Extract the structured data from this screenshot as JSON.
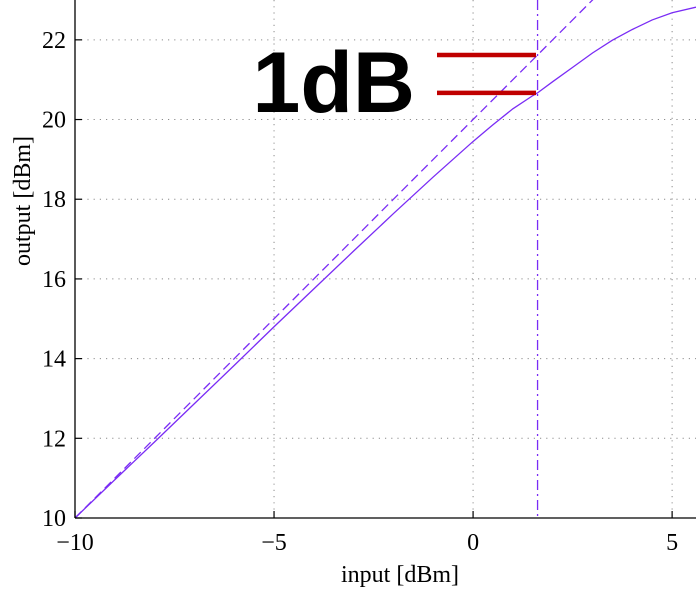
{
  "chart_data": {
    "type": "line",
    "title": "",
    "xlabel": "input [dBm]",
    "ylabel": "output [dBm]",
    "xlim": [
      -10,
      5.6
    ],
    "ylim": [
      10,
      23
    ],
    "x_ticks": [
      -10,
      -5,
      0,
      5
    ],
    "x_tick_labels": [
      "−10",
      "−5",
      "0",
      "5"
    ],
    "y_ticks": [
      10,
      12,
      14,
      16,
      18,
      20,
      22
    ],
    "y_tick_labels": [
      "10",
      "12",
      "14",
      "16",
      "18",
      "20",
      "22"
    ],
    "grid": true,
    "legend": "none",
    "series": [
      {
        "style": "solid",
        "color": "#7a2cf5",
        "x": [
          -10,
          -9,
          -8,
          -7,
          -6,
          -5,
          -4,
          -3,
          -2,
          -1,
          0,
          0.5,
          1,
          1.5,
          1.62,
          2,
          2.5,
          3,
          3.5,
          4,
          4.5,
          5,
          5.6
        ],
        "y": [
          10,
          10.96,
          11.91,
          12.87,
          13.83,
          14.8,
          15.75,
          16.7,
          17.64,
          18.56,
          19.45,
          19.87,
          20.27,
          20.6,
          20.67,
          20.95,
          21.31,
          21.67,
          21.99,
          22.26,
          22.5,
          22.68,
          22.82
        ]
      },
      {
        "style": "dashed",
        "color": "#7a2cf5",
        "x": [
          -10,
          3.2
        ],
        "y": [
          10,
          23.2
        ]
      }
    ],
    "vline": {
      "x": 1.62,
      "style": "dashdot",
      "color": "#7a2cf5"
    },
    "annotation": {
      "text": "1dB",
      "bar_color": "#c00000",
      "upper_level": 21.62,
      "lower_level": 20.67
    }
  }
}
